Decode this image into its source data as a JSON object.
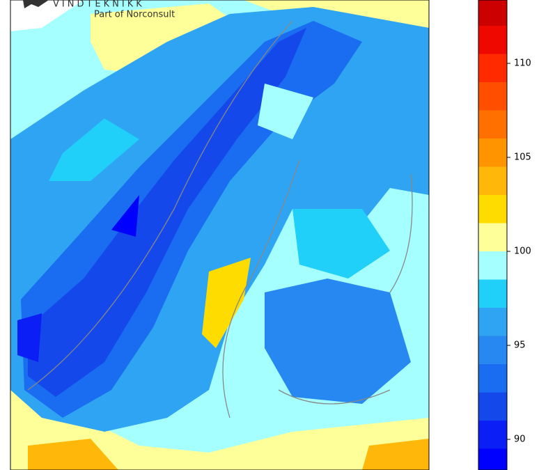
{
  "logo": {
    "name": "VINDTEKNIKK",
    "subtitle": "Part of Norconsult"
  },
  "colorbar": {
    "ylim": [
      88.37,
      113.37
    ],
    "ticks": [
      90,
      95,
      100,
      105,
      110
    ],
    "bounds": [
      89.5,
      91,
      92.5,
      94,
      95.5,
      97,
      98.5,
      100,
      101.5,
      103,
      104.5,
      106,
      107.5,
      109,
      110.5,
      112,
      113.5
    ],
    "extend": "min",
    "colors": [
      "#0000ff",
      "#0a1ef5",
      "#1448ea",
      "#1a6cf0",
      "#2688f0",
      "#2ea4f2",
      "#20d0f8",
      "#a6ffff",
      "#ffff99",
      "#ffdc00",
      "#ffb80a",
      "#ff9400",
      "#ff7000",
      "#ff4e00",
      "#ff2a00",
      "#ee0800",
      "#cc0000"
    ]
  }
}
